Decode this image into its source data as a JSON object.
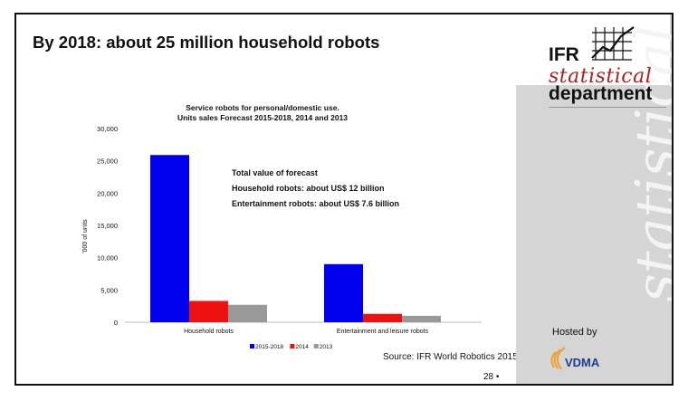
{
  "slide": {
    "title": "By 2018: about 25 million household robots",
    "source": "Source: IFR World Robotics 2015",
    "page_number": "28 •",
    "hosted_by": "Hosted by"
  },
  "logo": {
    "line1": "IFR",
    "line2": "statistical",
    "line3": "department",
    "watermark": "statistical",
    "sponsor": "VDMA"
  },
  "colors": {
    "series_2015_2018": "#0000ee",
    "series_2014": "#ee1111",
    "series_2013": "#999999",
    "stat_red": "#b02020",
    "vdma_blue": "#1a3d8f",
    "vdma_orange": "#f0a030"
  },
  "chart_data": {
    "type": "bar",
    "title": "Service robots for personal/domestic use.",
    "subtitle": "Units sales Forecast 2015-2018, 2014 and 2013",
    "xlabel": "",
    "ylabel": "'000 of units",
    "ylim": [
      0,
      30000
    ],
    "yticks": [
      "0",
      "5,000",
      "10,000",
      "15,000",
      "20,000",
      "25,000",
      "30,000"
    ],
    "ytick_values": [
      0,
      5000,
      10000,
      15000,
      20000,
      25000,
      30000
    ],
    "categories": [
      "Household robots",
      "Entertainment and leisure robots"
    ],
    "series": [
      {
        "name": "2015-2018",
        "values": [
          25900,
          9000
        ],
        "color": "#0000ee"
      },
      {
        "name": "2014",
        "values": [
          3300,
          1300
        ],
        "color": "#ee1111"
      },
      {
        "name": "2013",
        "values": [
          2700,
          1000
        ],
        "color": "#999999"
      }
    ],
    "legend_position": "bottom",
    "grid": false,
    "annotations": [
      "Total value of forecast",
      "Household robots: about US$ 12 billion",
      "Entertainment robots: about US$ 7.6 billion"
    ]
  }
}
